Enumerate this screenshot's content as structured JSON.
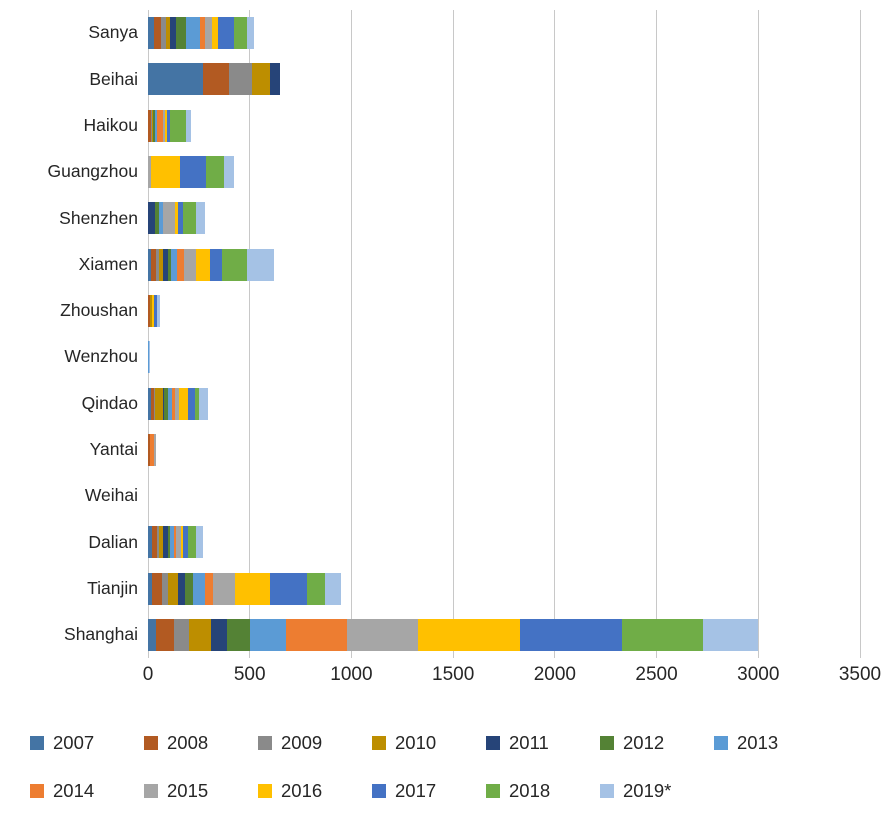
{
  "chart_data": {
    "type": "bar",
    "orientation": "horizontal-stacked",
    "title": "",
    "xlabel": "",
    "ylabel": "",
    "xlim": [
      0,
      3500
    ],
    "xticks": [
      0,
      500,
      1000,
      1500,
      2000,
      2500,
      3000,
      3500
    ],
    "grid": "vertical",
    "legend_position": "bottom",
    "categories": [
      "Sanya",
      "Beihai",
      "Haikou",
      "Guangzhou",
      "Shenzhen",
      "Xiamen",
      "Zhoushan",
      "Wenzhou",
      "Qindao",
      "Yantai",
      "Weihai",
      "Dalian",
      "Tianjin",
      "Shanghai"
    ],
    "series": [
      {
        "name": "2007",
        "color": "#4474A4",
        "values": [
          30,
          270,
          0,
          0,
          0,
          15,
          0,
          0,
          15,
          0,
          0,
          20,
          20,
          40
        ]
      },
      {
        "name": "2008",
        "color": "#B25A22",
        "values": [
          35,
          130,
          15,
          0,
          0,
          25,
          10,
          0,
          15,
          10,
          0,
          25,
          50,
          90
        ]
      },
      {
        "name": "2009",
        "color": "#8A8A8A",
        "values": [
          25,
          110,
          5,
          0,
          0,
          15,
          0,
          0,
          5,
          0,
          0,
          10,
          30,
          70
        ]
      },
      {
        "name": "2010",
        "color": "#BD8E00",
        "values": [
          20,
          90,
          5,
          0,
          0,
          20,
          10,
          0,
          40,
          0,
          0,
          20,
          50,
          110
        ]
      },
      {
        "name": "2011",
        "color": "#264478",
        "values": [
          30,
          50,
          0,
          0,
          35,
          25,
          0,
          0,
          5,
          0,
          0,
          25,
          30,
          80
        ]
      },
      {
        "name": "2012",
        "color": "#548235",
        "values": [
          45,
          0,
          10,
          0,
          20,
          15,
          0,
          0,
          20,
          0,
          0,
          10,
          40,
          110
        ]
      },
      {
        "name": "2013",
        "color": "#5B9BD5",
        "values": [
          70,
          0,
          10,
          0,
          20,
          30,
          0,
          5,
          20,
          0,
          0,
          20,
          60,
          180
        ]
      },
      {
        "name": "2014",
        "color": "#ED7D31",
        "values": [
          25,
          0,
          30,
          0,
          0,
          30,
          0,
          0,
          15,
          20,
          0,
          10,
          40,
          300
        ]
      },
      {
        "name": "2015",
        "color": "#A6A6A6",
        "values": [
          35,
          0,
          10,
          15,
          60,
          60,
          0,
          0,
          20,
          10,
          0,
          20,
          110,
          350
        ]
      },
      {
        "name": "2016",
        "color": "#FFC000",
        "values": [
          30,
          0,
          10,
          140,
          15,
          70,
          10,
          0,
          40,
          0,
          0,
          10,
          170,
          500
        ]
      },
      {
        "name": "2017",
        "color": "#4472C4",
        "values": [
          80,
          0,
          15,
          130,
          20,
          60,
          15,
          0,
          35,
          0,
          0,
          25,
          180,
          500
        ]
      },
      {
        "name": "2018",
        "color": "#70AD47",
        "values": [
          60,
          0,
          75,
          90,
          65,
          120,
          0,
          0,
          20,
          0,
          0,
          40,
          90,
          400
        ]
      },
      {
        "name": "2019*",
        "color": "#A5C2E5",
        "values": [
          35,
          0,
          25,
          50,
          45,
          135,
          15,
          5,
          45,
          0,
          0,
          35,
          80,
          270
        ]
      }
    ]
  }
}
